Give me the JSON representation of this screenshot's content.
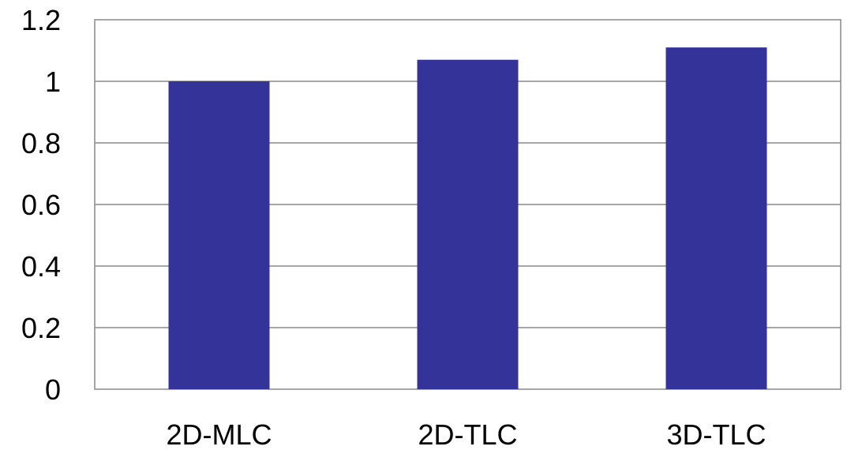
{
  "chart_data": {
    "type": "bar",
    "title": "",
    "xlabel": "",
    "ylabel": "",
    "categories": [
      "2D-MLC",
      "2D-TLC",
      "3D-TLC"
    ],
    "values": [
      1.0,
      1.07,
      1.11
    ],
    "ylim": [
      0,
      1.2
    ],
    "yticks": [
      "0",
      "0.2",
      "0.4",
      "0.6",
      "0.8",
      "1",
      "1.2"
    ],
    "grid": true,
    "legend": "none",
    "bar_color": "#333399",
    "grid_color": "#888888"
  }
}
